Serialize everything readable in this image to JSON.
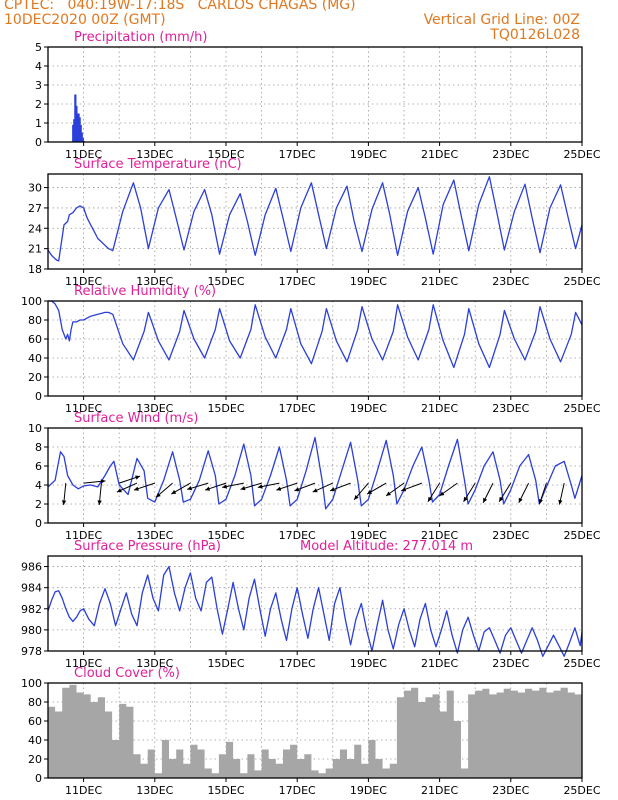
{
  "header": {
    "line1_left": "CPTEC:   040:19W-17:18S   CARLOS CHAGAS (MG)",
    "line2_left": "10DEC2020 00Z (GMT)",
    "line2_right": "Vertical Grid Line: 00Z",
    "line3_right": "TQ0126L028"
  },
  "colors": {
    "header": "#e07820",
    "panel_title": "#e0209a",
    "series": "#2b3fd9",
    "cloud": "#a6a6a6",
    "wind_arrow": "#000000"
  },
  "x_ticks": [
    "11DEC",
    "13DEC",
    "15DEC",
    "17DEC",
    "19DEC",
    "21DEC",
    "23DEC",
    "25DEC"
  ],
  "chart_data": [
    {
      "id": "precip",
      "type": "bar",
      "title": "Precipitation (mm/h)",
      "ylim": [
        0,
        5
      ],
      "yticks": [
        0,
        1,
        2,
        3,
        4,
        5
      ],
      "x": [
        0.7,
        0.73,
        0.76,
        0.79,
        0.82,
        0.85,
        0.88,
        0.91,
        0.94,
        0.97,
        1.0,
        1.1,
        1.5,
        2.5,
        4,
        6,
        8,
        10,
        12,
        14
      ],
      "values": [
        0.9,
        1.2,
        2.5,
        1.9,
        1.4,
        1.5,
        1.3,
        0.9,
        0.5,
        0.2,
        0.05,
        0.02,
        0.03,
        0.02,
        0.03,
        0.02,
        0.03,
        0.02,
        0.02,
        0.02
      ]
    },
    {
      "id": "temperature",
      "type": "line",
      "title": "Surface Temperature (nC)",
      "ylim": [
        18,
        32
      ],
      "yticks": [
        18,
        21,
        24,
        27,
        30
      ],
      "x": [
        0.0,
        0.1,
        0.2,
        0.25,
        0.3,
        0.35,
        0.45,
        0.55,
        0.6,
        0.7,
        0.8,
        0.9,
        1.0,
        1.1,
        1.2,
        1.3,
        1.4,
        1.5,
        1.6,
        1.7,
        1.82,
        2.1,
        2.4,
        2.6,
        2.82,
        3.1,
        3.4,
        3.6,
        3.82,
        4.1,
        4.4,
        4.6,
        4.82,
        5.1,
        5.4,
        5.6,
        5.82,
        6.1,
        6.4,
        6.6,
        6.82,
        7.1,
        7.4,
        7.6,
        7.82,
        8.1,
        8.4,
        8.6,
        8.82,
        9.1,
        9.4,
        9.6,
        9.82,
        10.1,
        10.4,
        10.6,
        10.82,
        11.1,
        11.4,
        11.6,
        11.82,
        12.1,
        12.4,
        12.6,
        12.82,
        13.1,
        13.4,
        13.6,
        13.82,
        14.1,
        14.4,
        14.6,
        14.82,
        15.0
      ],
      "values": [
        20.8,
        20.0,
        19.5,
        19.3,
        19.2,
        21.0,
        24.5,
        25.0,
        26.0,
        26.3,
        27.0,
        27.3,
        27.0,
        25.5,
        24.5,
        23.5,
        22.5,
        22.0,
        21.5,
        21.0,
        20.7,
        26.5,
        30.7,
        27.0,
        21.0,
        27.0,
        29.7,
        25.5,
        20.8,
        26.5,
        29.7,
        26.0,
        20.2,
        26.0,
        29.1,
        25.0,
        20.0,
        26.0,
        29.9,
        25.5,
        20.6,
        27.0,
        30.7,
        26.0,
        21.0,
        27.0,
        30.2,
        25.0,
        20.6,
        26.8,
        30.7,
        26.0,
        20.0,
        26.5,
        30.0,
        25.5,
        20.2,
        27.5,
        31.1,
        26.0,
        20.7,
        27.5,
        31.6,
        26.5,
        20.8,
        26.5,
        30.5,
        25.5,
        20.4,
        27.0,
        30.4,
        25.8,
        21.0,
        24.5
      ]
    },
    {
      "id": "humidity",
      "type": "line",
      "title": "Relative Humidity (%)",
      "ylim": [
        0,
        100
      ],
      "yticks": [
        0,
        20,
        40,
        60,
        80,
        100
      ],
      "x": [
        0.0,
        0.1,
        0.2,
        0.3,
        0.4,
        0.5,
        0.55,
        0.6,
        0.65,
        0.7,
        0.8,
        0.9,
        1.0,
        1.1,
        1.2,
        1.3,
        1.4,
        1.5,
        1.6,
        1.7,
        1.82,
        2.1,
        2.4,
        2.7,
        2.82,
        3.1,
        3.4,
        3.7,
        3.82,
        4.1,
        4.4,
        4.7,
        4.82,
        5.1,
        5.4,
        5.7,
        5.82,
        6.1,
        6.4,
        6.7,
        6.82,
        7.1,
        7.4,
        7.7,
        7.82,
        8.1,
        8.4,
        8.7,
        8.82,
        9.1,
        9.4,
        9.7,
        9.82,
        10.1,
        10.4,
        10.7,
        10.82,
        11.1,
        11.4,
        11.7,
        11.82,
        12.1,
        12.4,
        12.7,
        12.82,
        13.1,
        13.4,
        13.7,
        13.82,
        14.1,
        14.4,
        14.7,
        14.82,
        15.0
      ],
      "values": [
        100,
        100,
        97,
        90,
        70,
        60,
        65,
        58,
        70,
        78,
        78,
        80,
        80,
        82,
        84,
        85,
        86,
        87,
        88,
        88,
        86,
        55,
        38,
        68,
        88,
        58,
        38,
        68,
        90,
        60,
        40,
        70,
        92,
        58,
        40,
        70,
        96,
        62,
        40,
        70,
        92,
        55,
        34,
        68,
        92,
        58,
        36,
        70,
        94,
        60,
        38,
        68,
        96,
        62,
        38,
        70,
        96,
        58,
        30,
        65,
        92,
        55,
        30,
        65,
        90,
        60,
        38,
        68,
        94,
        60,
        36,
        65,
        88,
        75
      ]
    },
    {
      "id": "wind",
      "type": "line",
      "title": "Surface Wind (m/s)",
      "ylim": [
        0,
        10
      ],
      "yticks": [
        0,
        2,
        4,
        6,
        8,
        10
      ],
      "x": [
        0.0,
        0.2,
        0.35,
        0.45,
        0.55,
        0.7,
        0.85,
        1.0,
        1.2,
        1.4,
        1.6,
        1.75,
        1.85,
        2.0,
        2.25,
        2.5,
        2.7,
        2.8,
        3.0,
        3.25,
        3.5,
        3.7,
        3.8,
        4.0,
        4.25,
        4.5,
        4.7,
        4.8,
        5.0,
        5.25,
        5.5,
        5.7,
        5.8,
        6.0,
        6.25,
        6.5,
        6.7,
        6.8,
        7.0,
        7.25,
        7.5,
        7.7,
        7.8,
        8.0,
        8.25,
        8.5,
        8.7,
        8.8,
        9.0,
        9.25,
        9.5,
        9.7,
        9.8,
        10.0,
        10.25,
        10.5,
        10.7,
        10.8,
        11.0,
        11.25,
        11.5,
        11.7,
        11.8,
        12.0,
        12.25,
        12.5,
        12.7,
        12.8,
        13.0,
        13.25,
        13.5,
        13.7,
        13.8,
        14.0,
        14.25,
        14.5,
        14.7,
        14.8,
        15.0
      ],
      "values": [
        3.8,
        4.5,
        7.5,
        7.0,
        5.0,
        4.0,
        3.6,
        3.9,
        4.0,
        3.8,
        5.0,
        6.0,
        6.5,
        4.0,
        3.0,
        6.8,
        5.5,
        2.6,
        2.2,
        4.5,
        7.5,
        4.5,
        2.2,
        2.5,
        4.5,
        7.6,
        5.0,
        2.0,
        2.5,
        5.0,
        8.3,
        5.0,
        1.8,
        2.5,
        5.0,
        8.0,
        4.5,
        1.8,
        2.5,
        5.5,
        9.0,
        4.5,
        1.5,
        2.5,
        5.5,
        8.5,
        4.5,
        1.8,
        2.5,
        5.5,
        8.7,
        5.0,
        2.0,
        3.5,
        6.0,
        8.0,
        4.5,
        2.2,
        3.0,
        6.0,
        8.8,
        4.5,
        2.0,
        3.5,
        6.0,
        7.5,
        4.5,
        2.0,
        3.5,
        6.0,
        7.2,
        4.5,
        2.0,
        3.8,
        6.0,
        6.5,
        4.0,
        2.6,
        5.0
      ],
      "arrows_x": [
        0.5,
        1.0,
        1.5,
        2.0,
        2.5,
        3.0,
        3.5,
        4.0,
        4.5,
        5.0,
        5.5,
        6.0,
        6.5,
        7.0,
        7.5,
        8.0,
        8.5,
        9.0,
        9.5,
        10.0,
        10.5,
        11.0,
        11.5,
        12.0,
        12.5,
        13.0,
        13.5,
        14.0,
        14.5
      ],
      "arrows_u": [
        -0.1,
        1.0,
        -0.1,
        0.9,
        -0.9,
        -0.9,
        -0.7,
        -0.7,
        -1.0,
        -0.9,
        -1.0,
        -1.0,
        -1.0,
        -0.9,
        -0.8,
        -0.9,
        -0.8,
        -0.6,
        -0.7,
        -0.7,
        -0.8,
        -0.5,
        -0.7,
        -0.5,
        -0.4,
        -0.5,
        -0.4,
        -0.3,
        -0.2
      ],
      "arrows_v": [
        -1.0,
        0.1,
        -1.0,
        0.3,
        -0.4,
        -0.3,
        -0.6,
        -0.4,
        -0.3,
        -0.3,
        -0.2,
        -0.3,
        -0.2,
        -0.3,
        -0.3,
        -0.4,
        -0.3,
        -0.7,
        -0.4,
        -0.5,
        -0.3,
        -0.8,
        -0.5,
        -0.8,
        -0.8,
        -0.8,
        -0.8,
        -0.9,
        -0.9
      ]
    },
    {
      "id": "pressure",
      "type": "line",
      "title": "Surface Pressure (hPa)",
      "title_extra": "Model Altitude: 277.014 m",
      "ylim": [
        978,
        987
      ],
      "yticks": [
        978,
        980,
        982,
        984,
        986
      ],
      "x": [
        0.0,
        0.1,
        0.2,
        0.3,
        0.4,
        0.5,
        0.6,
        0.7,
        0.8,
        0.9,
        1.0,
        1.15,
        1.3,
        1.45,
        1.6,
        1.75,
        1.9,
        2.05,
        2.2,
        2.35,
        2.5,
        2.65,
        2.8,
        2.95,
        3.1,
        3.25,
        3.4,
        3.55,
        3.7,
        3.85,
        4.0,
        4.15,
        4.3,
        4.45,
        4.6,
        4.75,
        4.9,
        5.05,
        5.2,
        5.35,
        5.5,
        5.65,
        5.8,
        5.95,
        6.1,
        6.25,
        6.4,
        6.55,
        6.7,
        6.85,
        7.0,
        7.15,
        7.3,
        7.45,
        7.6,
        7.75,
        7.9,
        8.05,
        8.2,
        8.35,
        8.5,
        8.65,
        8.8,
        8.95,
        9.1,
        9.25,
        9.4,
        9.55,
        9.7,
        9.85,
        10.0,
        10.15,
        10.3,
        10.45,
        10.6,
        10.75,
        10.9,
        11.05,
        11.2,
        11.35,
        11.5,
        11.65,
        11.8,
        11.95,
        12.1,
        12.25,
        12.4,
        12.55,
        12.7,
        12.85,
        13.0,
        13.15,
        13.3,
        13.45,
        13.6,
        13.75,
        13.9,
        14.05,
        14.2,
        14.35,
        14.5,
        14.65,
        14.8,
        14.95,
        15.0
      ],
      "values": [
        981.8,
        982.8,
        983.6,
        983.7,
        983.0,
        982.0,
        981.2,
        980.8,
        981.2,
        981.8,
        982.0,
        981.0,
        980.4,
        982.5,
        983.9,
        982.5,
        980.4,
        982.0,
        983.5,
        981.5,
        980.4,
        983.5,
        985.2,
        983.0,
        981.8,
        985.2,
        986.0,
        983.5,
        981.8,
        984.0,
        985.4,
        983.0,
        981.8,
        984.5,
        985.0,
        982.0,
        979.6,
        982.0,
        984.5,
        982.0,
        980.0,
        983.0,
        984.8,
        982.0,
        979.4,
        982.0,
        983.5,
        981.0,
        979.0,
        982.0,
        984.0,
        981.5,
        979.2,
        982.0,
        984.0,
        981.5,
        979.0,
        982.5,
        984.0,
        981.0,
        978.6,
        981.0,
        982.5,
        980.0,
        978.0,
        980.5,
        982.8,
        980.0,
        978.2,
        980.5,
        982.0,
        980.0,
        978.4,
        981.0,
        982.5,
        980.0,
        978.4,
        980.0,
        981.8,
        979.5,
        977.8,
        980.0,
        981.2,
        979.5,
        978.0,
        979.8,
        980.2,
        979.0,
        977.8,
        979.5,
        980.2,
        979.0,
        977.8,
        979.0,
        980.2,
        979.0,
        977.5,
        978.5,
        979.5,
        978.5,
        977.5,
        978.8,
        980.2,
        978.5,
        979.8
      ]
    },
    {
      "id": "cloud",
      "type": "area",
      "title": "Cloud Cover (%)",
      "ylim": [
        0,
        100
      ],
      "yticks": [
        0,
        20,
        40,
        60,
        80,
        100
      ],
      "x": [
        0.0,
        0.2,
        0.4,
        0.6,
        0.8,
        1.0,
        1.2,
        1.4,
        1.6,
        1.8,
        2.0,
        2.2,
        2.4,
        2.6,
        2.8,
        3.0,
        3.2,
        3.4,
        3.6,
        3.8,
        4.0,
        4.2,
        4.4,
        4.6,
        4.8,
        5.0,
        5.2,
        5.4,
        5.6,
        5.8,
        6.0,
        6.2,
        6.4,
        6.6,
        6.8,
        7.0,
        7.2,
        7.4,
        7.6,
        7.8,
        8.0,
        8.2,
        8.4,
        8.6,
        8.8,
        9.0,
        9.2,
        9.4,
        9.6,
        9.8,
        10.0,
        10.2,
        10.4,
        10.6,
        10.8,
        11.0,
        11.2,
        11.4,
        11.6,
        11.8,
        12.0,
        12.2,
        12.4,
        12.6,
        12.8,
        13.0,
        13.2,
        13.4,
        13.6,
        13.8,
        14.0,
        14.2,
        14.4,
        14.6,
        14.8,
        15.0
      ],
      "values": [
        75,
        70,
        95,
        98,
        90,
        88,
        80,
        85,
        70,
        40,
        78,
        75,
        25,
        15,
        30,
        5,
        40,
        20,
        30,
        15,
        35,
        30,
        10,
        5,
        25,
        38,
        20,
        5,
        25,
        8,
        30,
        20,
        15,
        30,
        35,
        20,
        25,
        8,
        5,
        10,
        20,
        30,
        20,
        35,
        15,
        40,
        20,
        10,
        15,
        85,
        92,
        95,
        80,
        85,
        88,
        70,
        92,
        60,
        10,
        88,
        92,
        94,
        88,
        90,
        94,
        92,
        90,
        94,
        92,
        95,
        90,
        92,
        95,
        90,
        88,
        85
      ]
    }
  ]
}
